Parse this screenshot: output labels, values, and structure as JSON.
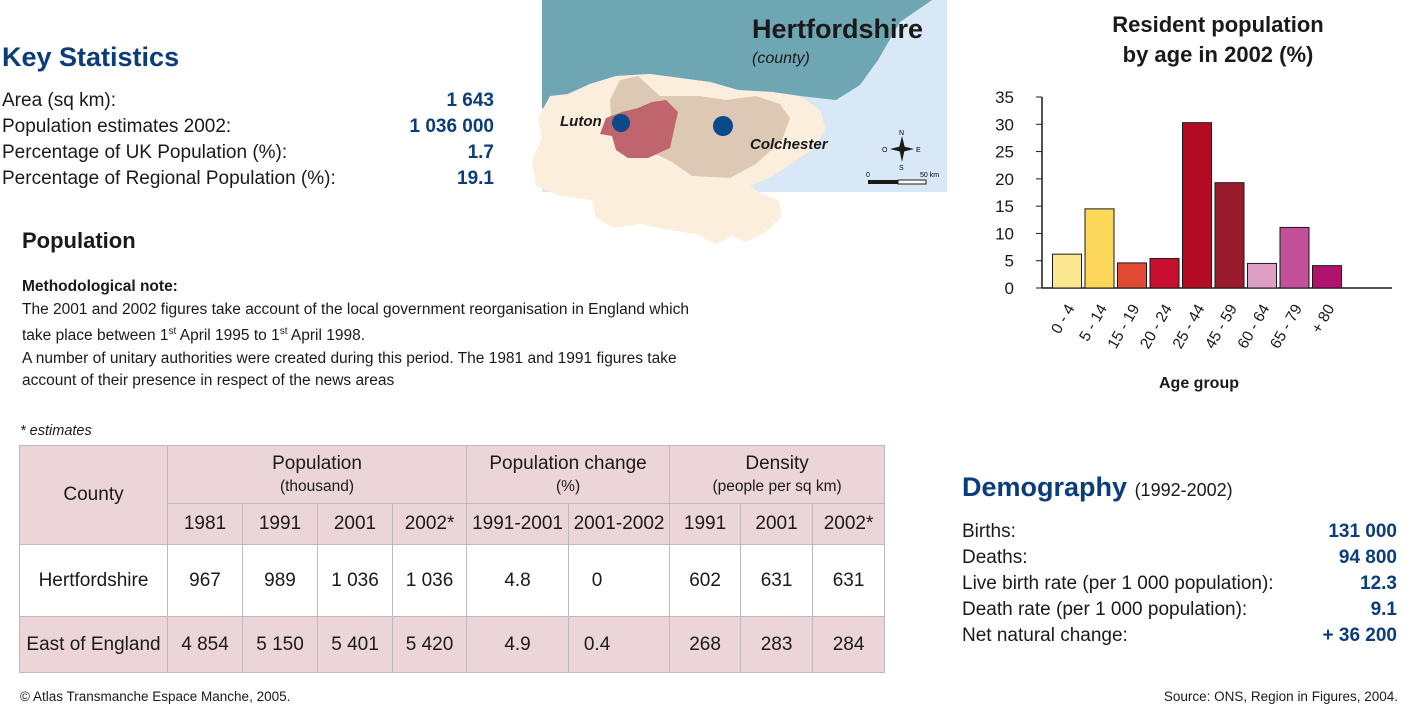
{
  "key_statistics": {
    "title": "Key Statistics",
    "rows": [
      {
        "label": "Area (sq km):",
        "value": "1 643"
      },
      {
        "label": "Population estimates 2002:",
        "value": "1 036 000"
      },
      {
        "label": "Percentage of UK Population (%):",
        "value": "1.7"
      },
      {
        "label": "Percentage of Regional Population (%):",
        "value": "19.1"
      }
    ]
  },
  "map": {
    "title": "Hertfordshire",
    "subtitle": "(county)",
    "labels": {
      "luton": "Luton",
      "colchester": "Colchester"
    },
    "scale": {
      "start": "0",
      "end": "50 km"
    },
    "compass": {
      "n": "N",
      "s": "S",
      "e": "E",
      "o": "O"
    },
    "colors": {
      "sea": "#d9e8f6",
      "north_land": "#6fa6b3",
      "region": "#fbeedd",
      "neighbour": "#ddc9b3",
      "county": "#c0646e",
      "city": "#0b4a8a"
    }
  },
  "population": {
    "title": "Population",
    "note_heading": "Methodological note:",
    "note_lines": [
      "The 2001 and 2002 figures take account of the local government reorganisation in England which",
      "take place between 1",
      "st",
      " April 1995 to 1",
      "st",
      " April 1998.",
      "A number of unitary authorities were created during this period. The 1981 and 1991 figures take",
      "account of their presence in respect of the news areas"
    ],
    "estimates_note": "* estimates"
  },
  "table": {
    "county_header": "County",
    "groups": [
      {
        "title": "Population",
        "sub": "(thousand)"
      },
      {
        "title": "Population change",
        "sub": "(%)"
      },
      {
        "title": "Density",
        "sub": "(people per sq km)"
      }
    ],
    "columns": [
      "1981",
      "1991",
      "2001",
      "2002*",
      "1991-2001",
      "2001-2002",
      "1991",
      "2001",
      "2002*"
    ],
    "rows": [
      {
        "county": "Hertfordshire",
        "cells": [
          "967",
          "989",
          "1 036",
          "1 036",
          "4.8",
          "0",
          "602",
          "631",
          "631"
        ]
      },
      {
        "county": "East of England",
        "cells": [
          "4 854",
          "5 150",
          "5 401",
          "5 420",
          "4.9",
          "0.4",
          "268",
          "283",
          "284"
        ]
      }
    ],
    "colors": {
      "header_bg": "#ecd5d9"
    }
  },
  "demography": {
    "title": "Demography",
    "period": "(1992-2002)",
    "rows": [
      {
        "label": "Births:",
        "value": "131 000"
      },
      {
        "label": "Deaths:",
        "value": "94 800"
      },
      {
        "label": "Live birth rate (per 1 000 population):",
        "value": "12.3"
      },
      {
        "label": "Death rate (per 1 000 population):",
        "value": "9.1"
      },
      {
        "label": "Net natural change:",
        "value": "+ 36 200"
      }
    ]
  },
  "chart_data": {
    "type": "bar",
    "title_line1": "Resident population",
    "title_line2": "by age in 2002 (%)",
    "xlabel": "Age group",
    "ylabel": "",
    "ylim": [
      0,
      35
    ],
    "yticks": [
      0,
      5,
      10,
      15,
      20,
      25,
      30,
      35
    ],
    "categories": [
      "0 - 4",
      "5 - 14",
      "15 - 19",
      "20 - 24",
      "25 - 44",
      "45 - 59",
      "60 - 64",
      "65 - 79",
      "+ 80"
    ],
    "values": [
      6.2,
      14.5,
      4.6,
      5.4,
      30.3,
      19.3,
      4.5,
      11.1,
      4.1
    ],
    "colors": [
      "#fce891",
      "#fdd75a",
      "#e04a32",
      "#c8102e",
      "#b30c22",
      "#991b2c",
      "#dda0c4",
      "#c2509a",
      "#b0126c"
    ],
    "grid": false,
    "legend": "none"
  },
  "footer": {
    "left": "© Atlas Transmanche Espace Manche, 2005.",
    "right": "Source: ONS, Region in Figures, 2004."
  }
}
